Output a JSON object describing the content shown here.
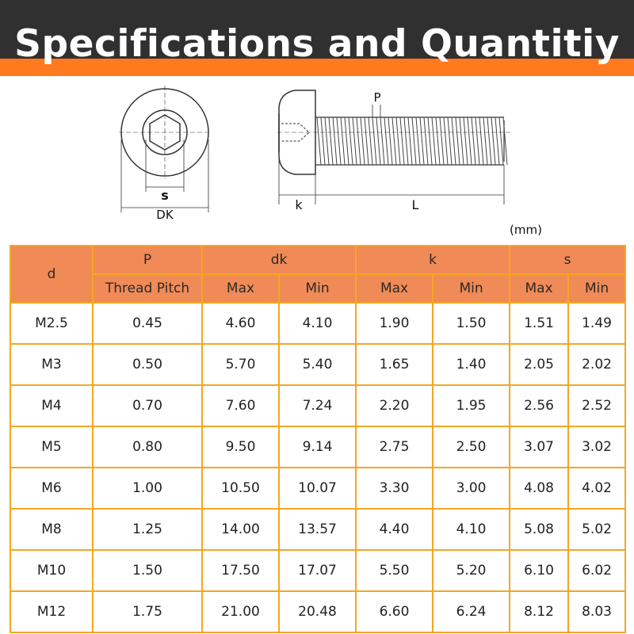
{
  "header": {
    "title": "Specifications and Quantitiy"
  },
  "diagram": {
    "labels": {
      "s": "s",
      "dk": "DK",
      "p": "P",
      "k": "k",
      "l": "L"
    }
  },
  "unit": "(mm)",
  "table": {
    "col_d": "d",
    "col_p_top": "P",
    "col_p_bottom": "Thread Pitch",
    "col_dk": "dk",
    "col_k": "k",
    "col_s": "s",
    "max": "Max",
    "min": "Min",
    "rows": [
      [
        "M2.5",
        "0.45",
        "4.60",
        "4.10",
        "1.90",
        "1.50",
        "1.51",
        "1.49"
      ],
      [
        "M3",
        "0.50",
        "5.70",
        "5.40",
        "1.65",
        "1.40",
        "2.05",
        "2.02"
      ],
      [
        "M4",
        "0.70",
        "7.60",
        "7.24",
        "2.20",
        "1.95",
        "2.56",
        "2.52"
      ],
      [
        "M5",
        "0.80",
        "9.50",
        "9.14",
        "2.75",
        "2.50",
        "3.07",
        "3.02"
      ],
      [
        "M6",
        "1.00",
        "10.50",
        "10.07",
        "3.30",
        "3.00",
        "4.08",
        "4.02"
      ],
      [
        "M8",
        "1.25",
        "14.00",
        "13.57",
        "4.40",
        "4.10",
        "5.08",
        "5.02"
      ],
      [
        "M10",
        "1.50",
        "17.50",
        "17.07",
        "5.50",
        "5.20",
        "6.10",
        "6.02"
      ],
      [
        "M12",
        "1.75",
        "21.00",
        "20.48",
        "6.60",
        "6.24",
        "8.12",
        "8.03"
      ]
    ]
  },
  "colors": {
    "header_bg": "#303030",
    "accent": "#ff7a1e",
    "table_head": "#f08a56",
    "border": "#f5a623"
  }
}
